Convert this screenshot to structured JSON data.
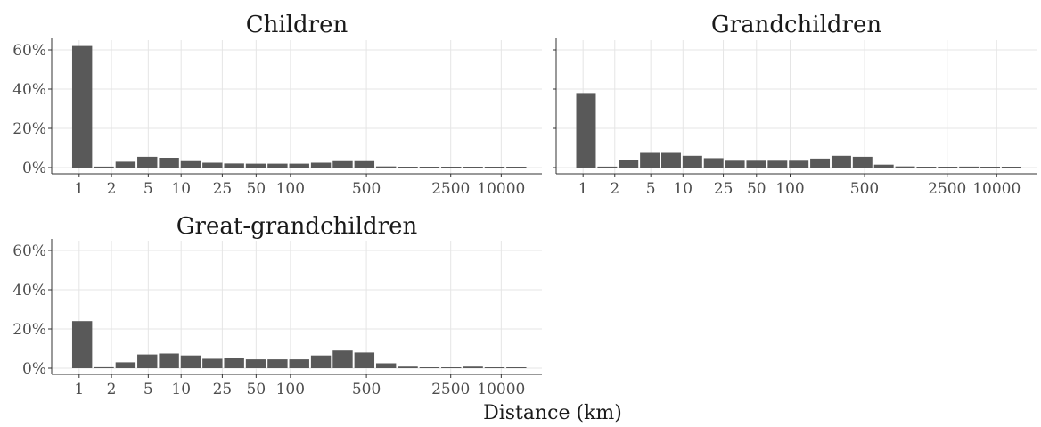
{
  "chart_data": {
    "type": "bar",
    "xlabel": "Distance (km)",
    "ylabel": "",
    "ylim": [
      0,
      0.65
    ],
    "x_scale": "log",
    "x_tick_labels": [
      "1",
      "2",
      "5",
      "10",
      "25",
      "50",
      "100",
      "500",
      "2500",
      "10000"
    ],
    "y_tick_labels": [
      "0%",
      "20%",
      "40%",
      "60%"
    ],
    "grid": true,
    "bar_color": "#595959",
    "panels": [
      {
        "title": "Children",
        "values": [
          0.62,
          0.005,
          0.03,
          0.055,
          0.05,
          0.033,
          0.025,
          0.021,
          0.02,
          0.02,
          0.02,
          0.025,
          0.033,
          0.033,
          0.006,
          0.003,
          0.002,
          0.002,
          0.002,
          0.002,
          0.001
        ]
      },
      {
        "title": "Grandchildren",
        "values": [
          0.38,
          0.005,
          0.04,
          0.075,
          0.075,
          0.06,
          0.048,
          0.035,
          0.035,
          0.035,
          0.035,
          0.046,
          0.06,
          0.055,
          0.015,
          0.006,
          0.003,
          0.003,
          0.005,
          0.003,
          0.002
        ]
      },
      {
        "title": "Great-grandchildren",
        "values": [
          0.24,
          0.005,
          0.03,
          0.07,
          0.075,
          0.065,
          0.048,
          0.05,
          0.045,
          0.045,
          0.045,
          0.065,
          0.09,
          0.08,
          0.025,
          0.008,
          0.003,
          0.003,
          0.008,
          0.004,
          0.004
        ]
      }
    ]
  }
}
